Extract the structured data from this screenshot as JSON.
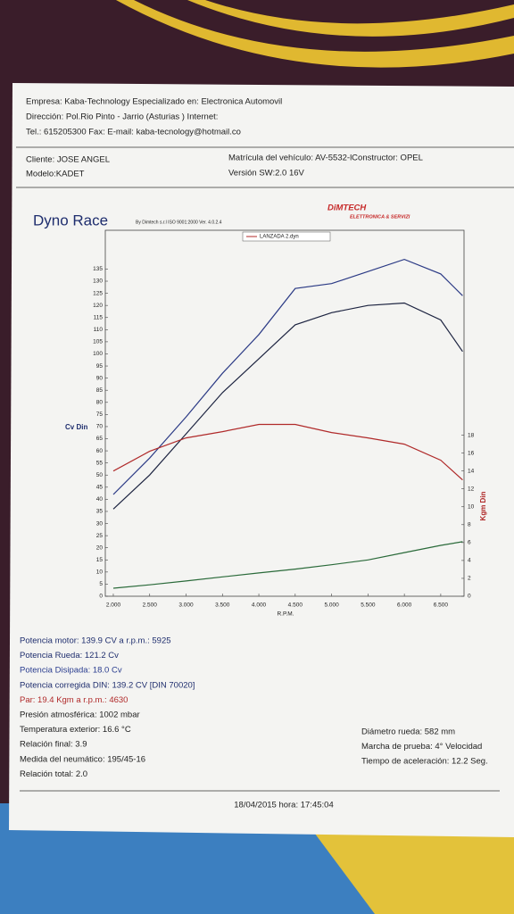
{
  "header": {
    "lines": [
      "Empresa: Kaba-Technology  Especializado en: Electronica Automovil",
      "Dirección: Pol.Rio Pinto - Jarrio (Asturias ) Internet:",
      "Tel.: 615205300 Fax:  E-mail: kaba-tecnology@hotmail.co"
    ]
  },
  "client": {
    "left": [
      "Cliente:   JOSE ANGEL",
      "Modelo:KADET"
    ],
    "right": [
      "Matrícula del vehículo: AV-5532-lConstructor: OPEL",
      "Versión SW:2.0 16V"
    ]
  },
  "logo": {
    "name": "DiMTECH",
    "tagline": "ELETTRONICA & SERVIZI"
  },
  "chart_data": {
    "type": "line",
    "title": "Dyno Race",
    "subtitle": "By Dimtech s.r.l  ISO 9001:2000  Ver. 4.0.2.4",
    "y_label": "Cv Din",
    "y2_label": "Kgm Din",
    "x_label": "R.P.M.",
    "x": [
      2000,
      2500,
      3000,
      3500,
      4000,
      4500,
      5000,
      5500,
      6000,
      6500,
      6800
    ],
    "series": [
      {
        "color": "#2b3a85",
        "values": [
          42,
          57,
          74,
          92,
          108,
          127,
          129,
          134,
          139,
          133,
          124
        ]
      },
      {
        "color": "#1c2340",
        "values": [
          36,
          50,
          67,
          84,
          98,
          112,
          117,
          120,
          121,
          114,
          101
        ]
      },
      {
        "name": "LANZADA 2.dyn",
        "color": "#b02a2a",
        "axis": "y2",
        "values": [
          14,
          16.2,
          17.7,
          18.4,
          19.2,
          19.2,
          18.3,
          17.7,
          17,
          15.2,
          13
        ]
      },
      {
        "color": "#2a6a3a",
        "values": [
          3.3,
          4.7,
          6.3,
          8,
          9.6,
          11.2,
          13,
          15,
          18,
          21,
          22.5
        ]
      }
    ],
    "xlim": [
      1890,
      6820
    ],
    "xticks": [
      {
        "value": 2000,
        "label": "2.000"
      },
      {
        "value": 2500,
        "label": "2.500"
      },
      {
        "value": 3000,
        "label": "3.000"
      },
      {
        "value": 3500,
        "label": "3.500"
      },
      {
        "value": 4000,
        "label": "4.000"
      },
      {
        "value": 4500,
        "label": "4.500"
      },
      {
        "value": 5000,
        "label": "5.000"
      },
      {
        "value": 5500,
        "label": "5.500"
      },
      {
        "value": 6000,
        "label": "6.000"
      },
      {
        "value": 6500,
        "label": "6.500"
      }
    ],
    "ylim": [
      0,
      151
    ],
    "yticks": [
      0,
      5,
      10,
      15,
      20,
      25,
      30,
      35,
      40,
      45,
      50,
      55,
      60,
      65,
      70,
      75,
      80,
      85,
      90,
      95,
      100,
      105,
      110,
      115,
      120,
      125,
      130,
      135
    ],
    "y2lim": [
      0,
      40.9
    ],
    "y2ticks": [
      0,
      2,
      4,
      6,
      8,
      10,
      12,
      14,
      16,
      18
    ],
    "legend": "top",
    "grid": false
  },
  "results": {
    "left": [
      "Potencia motor:  139.9 CV a r.p.m.: 5925",
      "Potencia Rueda:  121.2 Cv",
      "Potencia Disipada:   18.0 Cv",
      " Potencia corregida DIN:  139.2 CV  [DIN 70020]",
      "Par:  19.4  Kgm a r.p.m.: 4630",
      "Presión atmosférica:   1002 mbar",
      "Temperatura exterior:    16.6 °C",
      "Relación final: 3.9",
      "Medida del neumático:   195/45-16",
      "Relación total: 2.0"
    ],
    "right": [
      "Diámetro rueda:  582 mm",
      "Marcha de prueba:  4° Velocidad",
      "Tiempo de aceleración: 12.2 Seg."
    ]
  },
  "footer": "18/04/2015  hora:   17:45:04"
}
